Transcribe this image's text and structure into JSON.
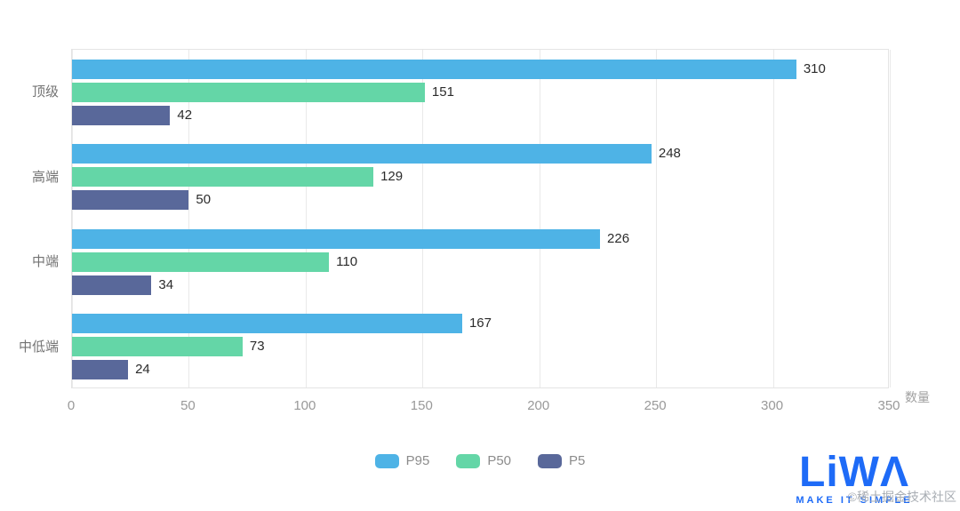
{
  "chart_data": {
    "type": "bar",
    "orientation": "horizontal",
    "categories": [
      "顶级",
      "高端",
      "中端",
      "中低端"
    ],
    "series": [
      {
        "name": "P95",
        "color": "#4eb3e6",
        "values": [
          310,
          248,
          226,
          167
        ]
      },
      {
        "name": "P50",
        "color": "#64d6a7",
        "values": [
          151,
          129,
          110,
          73
        ]
      },
      {
        "name": "P5",
        "color": "#59689a",
        "values": [
          42,
          50,
          34,
          24
        ]
      }
    ],
    "xlabel": "数量",
    "xlim": [
      0,
      350
    ],
    "xticks": [
      0,
      50,
      100,
      150,
      200,
      250,
      300,
      350
    ],
    "legend_position": "bottom",
    "grid": true,
    "title": ""
  },
  "legend": {
    "items": [
      "P95",
      "P50",
      "P5"
    ]
  },
  "watermark": {
    "text": "©稀土掘金技术社区"
  },
  "logo": {
    "text": "LiWΛ",
    "tagline": "MAKE IT SIMPLE"
  }
}
